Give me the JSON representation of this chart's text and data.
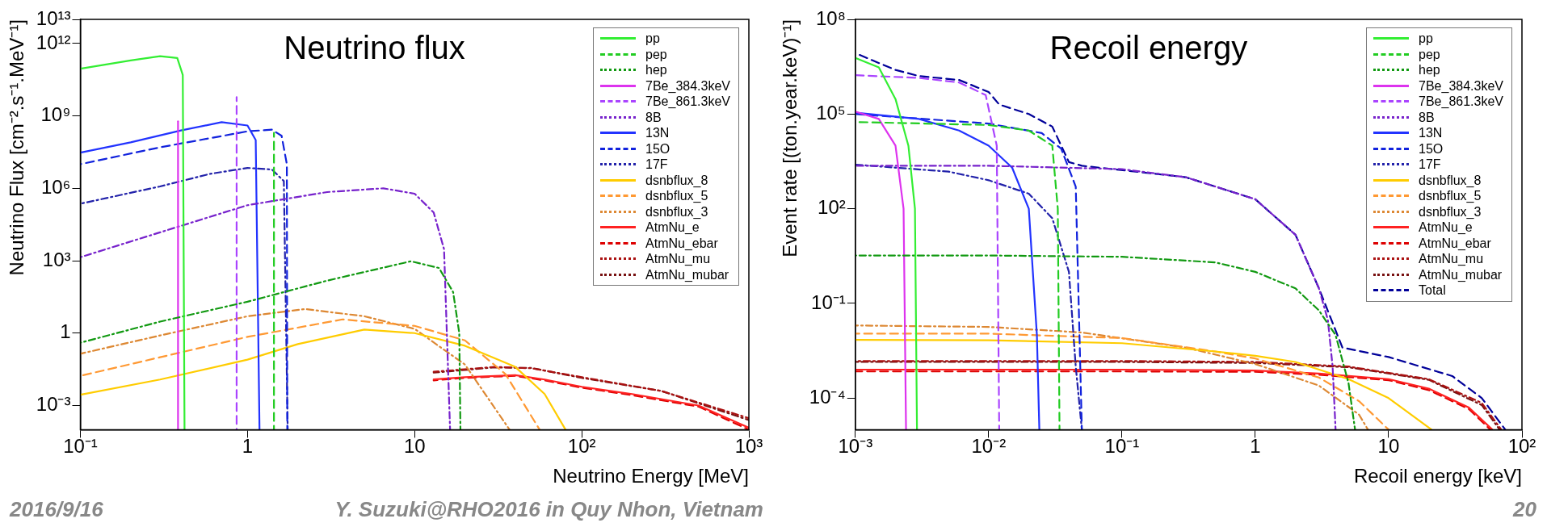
{
  "chart_data": [
    {
      "type": "line",
      "title": "Neutrino flux",
      "xlabel": "Neutrino Energy [MeV]",
      "ylabel": "Neutrino Flux [cm⁻².s⁻¹.MeV⁻¹]",
      "log": "xy",
      "legend": "top right",
      "xlim": [
        0.1,
        1000
      ],
      "ylim": [
        0.0001,
        10000000000000.0
      ],
      "xticks": [
        {
          "value": 0.1,
          "label": "10⁻¹"
        },
        {
          "value": 1,
          "label": "1"
        },
        {
          "value": 10,
          "label": "10"
        },
        {
          "value": 100,
          "label": "10²"
        },
        {
          "value": 1000,
          "label": "10³"
        }
      ],
      "yticks": [
        {
          "value": 0.001,
          "label": "10⁻³"
        },
        {
          "value": 1,
          "label": "1"
        },
        {
          "value": 1000,
          "label": "10³"
        },
        {
          "value": 1000000.0,
          "label": "10⁶"
        },
        {
          "value": 1000000000.0,
          "label": "10⁹"
        },
        {
          "value": 1000000000000.0,
          "label": "10¹²"
        },
        {
          "value": 10000000000000.0,
          "label": "10¹³"
        }
      ],
      "annotations": [
        "2016/9/16",
        "Y. Suzuki@RHO2016 in Quy Nhon, Vietnam"
      ],
      "series": [
        {
          "name": "pp",
          "color": "#33ee33",
          "line_style": "solid",
          "x": [
            0.1,
            0.2,
            0.3,
            0.38,
            0.41,
            0.42
          ],
          "values": [
            90000000000.0,
            200000000000.0,
            300000000000.0,
            250000000000.0,
            50000000000.0,
            0.0001
          ]
        },
        {
          "name": "pep",
          "color": "#22cc22",
          "line_style": "dashed",
          "x": [
            1.44,
            1.44
          ],
          "values": [
            0.0001,
            200000000.0
          ]
        },
        {
          "name": "hep",
          "color": "#119911",
          "line_style": "dotted",
          "x": [
            0.1,
            0.3,
            1,
            3,
            9.5,
            14,
            17,
            18.5,
            18.8
          ],
          "values": [
            0.4,
            3,
            20,
            150,
            950,
            500,
            50,
            1,
            0.0001
          ]
        },
        {
          "name": "7Be_384.3keV",
          "color": "#dd33ee",
          "line_style": "solid",
          "x": [
            0.384,
            0.384
          ],
          "values": [
            0.0001,
            600000000.0
          ]
        },
        {
          "name": "7Be_861.3keV",
          "color": "#aa44ff",
          "line_style": "dashed",
          "x": [
            0.861,
            0.861
          ],
          "values": [
            0.0001,
            6000000000.0
          ]
        },
        {
          "name": "8B",
          "color": "#7722cc",
          "line_style": "dotted",
          "x": [
            0.1,
            0.3,
            1,
            3,
            6.5,
            10,
            13,
            15,
            16.3
          ],
          "values": [
            1400,
            15000,
            200000,
            700000,
            1000000.0,
            600000,
            100000,
            3000,
            0.0001
          ]
        },
        {
          "name": "13N",
          "color": "#2233ff",
          "line_style": "solid",
          "x": [
            0.1,
            0.2,
            0.4,
            0.7,
            1,
            1.12,
            1.18
          ],
          "values": [
            30000000.0,
            80000000.0,
            250000000.0,
            550000000.0,
            400000000.0,
            100000000.0,
            0.0001
          ]
        },
        {
          "name": "15O",
          "color": "#1122dd",
          "line_style": "dashed",
          "x": [
            0.1,
            0.3,
            1,
            1.4,
            1.6,
            1.72,
            1.73
          ],
          "values": [
            10000000.0,
            50000000.0,
            230000000.0,
            270000000.0,
            150000000.0,
            10000000.0,
            0.0001
          ]
        },
        {
          "name": "17F",
          "color": "#2222aa",
          "line_style": "dotted",
          "x": [
            0.1,
            0.3,
            0.6,
            1,
            1.4,
            1.65,
            1.74
          ],
          "values": [
            230000,
            1200000.0,
            4000000.0,
            7000000.0,
            6000000.0,
            2000000.0,
            0.0001
          ]
        },
        {
          "name": "dsnbflux_8",
          "color": "#ffcc00",
          "line_style": "solid",
          "x": [
            0.1,
            0.3,
            1,
            2,
            5,
            10,
            20,
            40,
            60,
            80
          ],
          "values": [
            0.0028,
            0.012,
            0.08,
            0.35,
            1.4,
            1,
            0.3,
            0.04,
            0.003,
            0.0001
          ]
        },
        {
          "name": "dsnbflux_5",
          "color": "#ff9933",
          "line_style": "dashed",
          "x": [
            0.1,
            0.3,
            1,
            3.7,
            10,
            20,
            35,
            56
          ],
          "values": [
            0.017,
            0.1,
            0.7,
            3.7,
            2,
            0.5,
            0.02,
            0.0001
          ]
        },
        {
          "name": "dsnbflux_3",
          "color": "#dd8833",
          "line_style": "dotted",
          "x": [
            0.1,
            0.3,
            1,
            2.2,
            5,
            10,
            20,
            37
          ],
          "values": [
            0.14,
            0.8,
            5,
            10,
            5,
            1.5,
            0.05,
            0.0001
          ]
        },
        {
          "name": "AtmNu_e",
          "color": "#ff2222",
          "line_style": "solid",
          "x": [
            13,
            20,
            40,
            60,
            100,
            200,
            500,
            1000
          ],
          "values": [
            0.012,
            0.015,
            0.018,
            0.012,
            0.006,
            0.003,
            0.001,
            0.00012
          ]
        },
        {
          "name": "AtmNu_ebar",
          "color": "#dd0000",
          "line_style": "dashed",
          "x": [
            13,
            20,
            40,
            60,
            100,
            200,
            500,
            1000
          ],
          "values": [
            0.011,
            0.014,
            0.017,
            0.011,
            0.0055,
            0.0027,
            0.0009,
            0.0001
          ]
        },
        {
          "name": "AtmNu_mu",
          "color": "#aa1111",
          "line_style": "dotted",
          "x": [
            13,
            30,
            50,
            100,
            300,
            1000
          ],
          "values": [
            0.025,
            0.04,
            0.035,
            0.015,
            0.004,
            0.0003
          ]
        },
        {
          "name": "AtmNu_mubar",
          "color": "#771111",
          "line_style": "dotted",
          "x": [
            13,
            30,
            50,
            100,
            300,
            1000
          ],
          "values": [
            0.023,
            0.038,
            0.036,
            0.014,
            0.004,
            0.00025
          ]
        }
      ]
    },
    {
      "type": "line",
      "title": "Recoil energy",
      "xlabel": "Recoil energy [keV]",
      "ylabel": "Event rate [(ton.year.keV)⁻¹]",
      "log": "xy",
      "legend": "top right",
      "xlim": [
        0.001,
        100
      ],
      "ylim": [
        1e-05,
        100000000.0
      ],
      "xticks": [
        {
          "value": 0.001,
          "label": "10⁻³"
        },
        {
          "value": 0.01,
          "label": "10⁻²"
        },
        {
          "value": 0.1,
          "label": "10⁻¹"
        },
        {
          "value": 1,
          "label": "1"
        },
        {
          "value": 10,
          "label": "10"
        },
        {
          "value": 100,
          "label": "10²"
        }
      ],
      "yticks": [
        {
          "value": 0.0001,
          "label": "10⁻⁴"
        },
        {
          "value": 0.1,
          "label": "10⁻¹"
        },
        {
          "value": 100,
          "label": "10²"
        },
        {
          "value": 100000,
          "label": "10⁵"
        },
        {
          "value": 100000000.0,
          "label": "10⁸"
        }
      ],
      "annotations": [
        "20"
      ],
      "series": [
        {
          "name": "pp",
          "color": "#33ee33",
          "line_style": "solid",
          "x": [
            0.001,
            0.0015,
            0.002,
            0.0025,
            0.0028,
            0.0029
          ],
          "values": [
            6000000.0,
            3000000.0,
            300000,
            10000,
            100,
            1e-05
          ]
        },
        {
          "name": "pep",
          "color": "#22cc22",
          "line_style": "dashed",
          "x": [
            0.001,
            0.01,
            0.02,
            0.03,
            0.033,
            0.034
          ],
          "values": [
            56000,
            45000,
            30000,
            10000,
            100,
            1e-05
          ]
        },
        {
          "name": "hep",
          "color": "#119911",
          "line_style": "dotted",
          "x": [
            0.001,
            0.01,
            0.1,
            0.5,
            1,
            2,
            3,
            4,
            5,
            5.6
          ],
          "values": [
            3.3,
            3.3,
            3,
            2,
            1,
            0.3,
            0.06,
            0.01,
            0.0003,
            1e-05
          ]
        },
        {
          "name": "7Be_384.3keV",
          "color": "#dd33ee",
          "line_style": "solid",
          "x": [
            0.001,
            0.0015,
            0.002,
            0.0023,
            0.0024
          ],
          "values": [
            120000,
            70000,
            10000,
            100,
            1e-05
          ]
        },
        {
          "name": "7Be_861.3keV",
          "color": "#aa44ff",
          "line_style": "dashed",
          "x": [
            0.001,
            0.003,
            0.006,
            0.0095,
            0.0115,
            0.012
          ],
          "values": [
            1700000.0,
            1400000.0,
            1000000.0,
            400000,
            10000,
            1e-05
          ]
        },
        {
          "name": "8B",
          "color": "#7722cc",
          "line_style": "dotted",
          "x": [
            0.001,
            0.01,
            0.1,
            0.3,
            1,
            2,
            3,
            3.5,
            3.8,
            4
          ],
          "values": [
            2300,
            2300,
            1800,
            1000,
            200,
            15,
            0.3,
            0.03,
            0.001,
            1e-05
          ]
        },
        {
          "name": "13N",
          "color": "#2233ff",
          "line_style": "solid",
          "x": [
            0.001,
            0.003,
            0.006,
            0.01,
            0.015,
            0.02,
            0.023,
            0.024
          ],
          "values": [
            110000,
            70000,
            30000,
            10000,
            2000,
            100,
            0.01,
            1e-05
          ]
        },
        {
          "name": "15O",
          "color": "#1122dd",
          "line_style": "dashed",
          "x": [
            0.001,
            0.01,
            0.025,
            0.035,
            0.045,
            0.05
          ],
          "values": [
            100000,
            50000,
            25000,
            8000,
            500,
            1e-05
          ]
        },
        {
          "name": "17F",
          "color": "#2222aa",
          "line_style": "dotted",
          "x": [
            0.001,
            0.005,
            0.01,
            0.02,
            0.03,
            0.04,
            0.045,
            0.05
          ],
          "values": [
            2500,
            1500,
            800,
            300,
            50,
            1,
            0.001,
            1e-05
          ]
        },
        {
          "name": "dsnbflux_8",
          "color": "#ffcc00",
          "line_style": "solid",
          "x": [
            0.001,
            0.01,
            0.1,
            0.5,
            1,
            2,
            5,
            10,
            21
          ],
          "values": [
            0.007,
            0.0068,
            0.0055,
            0.003,
            0.0022,
            0.0014,
            0.0004,
            0.0001,
            1e-05
          ]
        },
        {
          "name": "dsnbflux_5",
          "color": "#ff9933",
          "line_style": "dashed",
          "x": [
            0.001,
            0.01,
            0.1,
            0.5,
            1,
            3,
            6,
            10
          ],
          "values": [
            0.011,
            0.011,
            0.008,
            0.003,
            0.0018,
            0.00045,
            8e-05,
            1e-05
          ]
        },
        {
          "name": "dsnbflux_3",
          "color": "#dd8833",
          "line_style": "dotted",
          "x": [
            0.001,
            0.01,
            0.05,
            0.3,
            1,
            3,
            6,
            7
          ],
          "values": [
            0.02,
            0.018,
            0.012,
            0.004,
            0.0012,
            0.00025,
            3e-05,
            1e-05
          ]
        },
        {
          "name": "AtmNu_e",
          "color": "#ff2222",
          "line_style": "solid",
          "x": [
            0.001,
            0.1,
            1,
            3,
            10,
            20,
            40,
            60
          ],
          "values": [
            0.0008,
            0.0008,
            0.00075,
            0.0006,
            0.0004,
            0.0002,
            5e-05,
            1e-05
          ]
        },
        {
          "name": "AtmNu_ebar",
          "color": "#dd0000",
          "line_style": "dashed",
          "x": [
            0.001,
            0.1,
            1,
            3,
            10,
            20,
            40,
            58
          ],
          "values": [
            0.0007,
            0.0007,
            0.00068,
            0.00055,
            0.00037,
            0.00018,
            4.5e-05,
            1e-05
          ]
        },
        {
          "name": "AtmNu_mu",
          "color": "#aa1111",
          "line_style": "dotted",
          "x": [
            0.001,
            0.1,
            1,
            5,
            20,
            50,
            70
          ],
          "values": [
            0.0015,
            0.0015,
            0.0014,
            0.001,
            0.0004,
            7e-05,
            1e-05
          ]
        },
        {
          "name": "AtmNu_mubar",
          "color": "#771111",
          "line_style": "dotted",
          "x": [
            0.001,
            0.1,
            1,
            5,
            20,
            50,
            68
          ],
          "values": [
            0.0014,
            0.0014,
            0.0013,
            0.00095,
            0.00038,
            6e-05,
            1e-05
          ]
        },
        {
          "name": "Total",
          "color": "#000099",
          "line_style": "dashed",
          "x": [
            0.001,
            0.002,
            0.003,
            0.006,
            0.01,
            0.012,
            0.02,
            0.03,
            0.04,
            0.05,
            0.3,
            1,
            2,
            3,
            4.5,
            10,
            30,
            50,
            75
          ],
          "values": [
            8500000.0,
            2500000.0,
            1600000.0,
            1200000.0,
            500000,
            200000,
            100000,
            40000,
            3000,
            2300,
            1000,
            200,
            15,
            0.3,
            0.004,
            0.002,
            0.0005,
            0.0001,
            1e-05
          ]
        }
      ]
    }
  ]
}
